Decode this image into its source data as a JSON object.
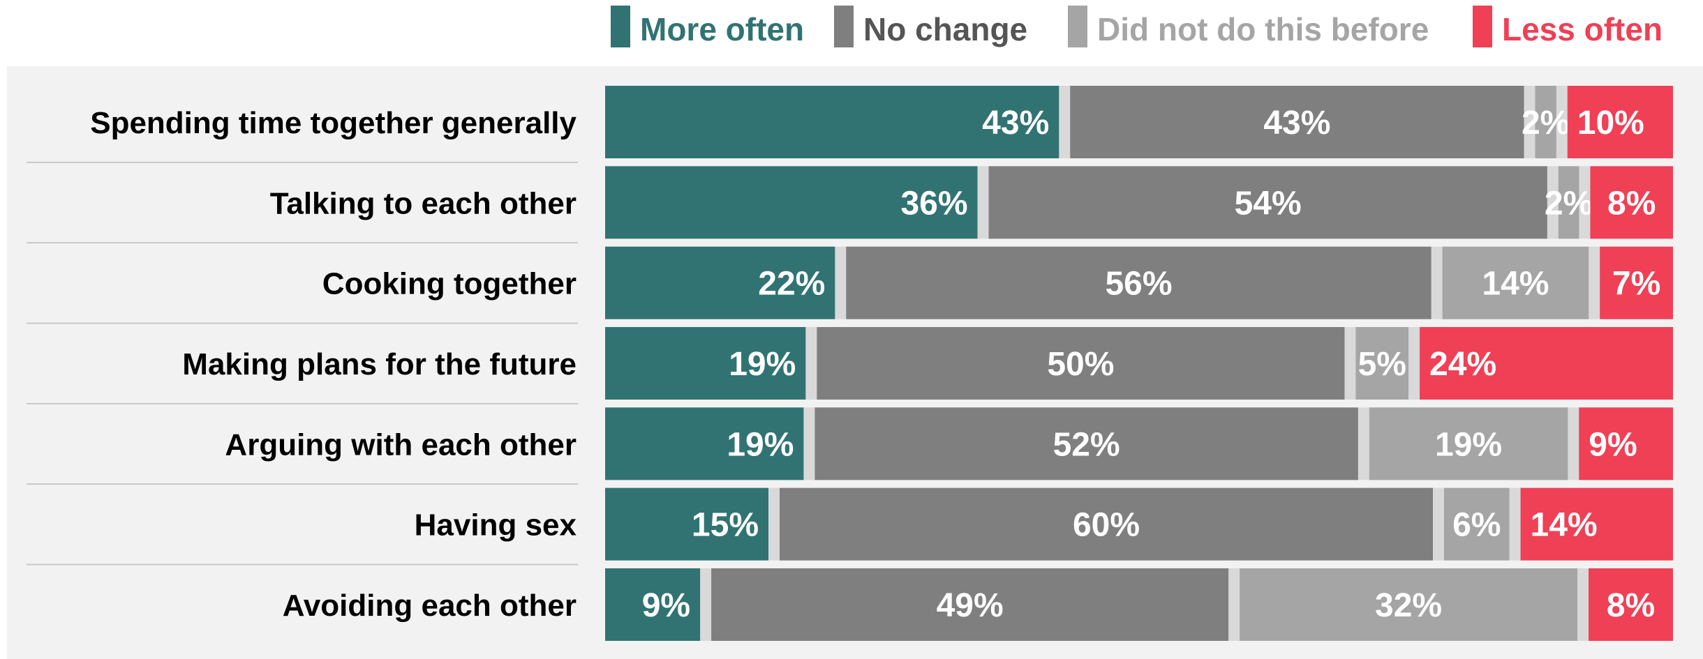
{
  "chart_data": {
    "type": "bar",
    "orientation": "horizontal",
    "stacked": true,
    "categories": [
      "Spending time together generally",
      "Talking to each other",
      "Cooking together",
      "Making plans for the future",
      "Arguing with each other",
      "Having sex",
      "Avoiding each other"
    ],
    "series": [
      {
        "name": "More often",
        "color": "#317373",
        "values": [
          43,
          36,
          22,
          19,
          19,
          15,
          9
        ]
      },
      {
        "name": "No change",
        "color": "#7f7f7f",
        "values": [
          43,
          54,
          56,
          50,
          52,
          60,
          49
        ]
      },
      {
        "name": "Did not do this before",
        "color": "#a5a5a5",
        "values": [
          2,
          2,
          14,
          5,
          19,
          6,
          32
        ]
      },
      {
        "name": "Less often",
        "color": "#ef4056",
        "values": [
          10,
          8,
          7,
          24,
          9,
          14,
          8
        ]
      }
    ],
    "value_labels": [
      [
        "43%",
        "43%",
        "2%",
        "10%"
      ],
      [
        "36%",
        "54%",
        "2%",
        "8%"
      ],
      [
        "22%",
        "56%",
        "14%",
        "7%"
      ],
      [
        "19%",
        "50%",
        "5%",
        "24%"
      ],
      [
        "19%",
        "52%",
        "19%",
        "9%"
      ],
      [
        "15%",
        "60%",
        "6%",
        "14%"
      ],
      [
        "9%",
        "49%",
        "32%",
        "8%"
      ]
    ],
    "xlim": [
      0,
      100
    ],
    "legend_position": "top",
    "plot_background": "#f2f2f2",
    "gap_color": "#d9d9d9",
    "title": "",
    "xlabel": "",
    "ylabel": ""
  }
}
